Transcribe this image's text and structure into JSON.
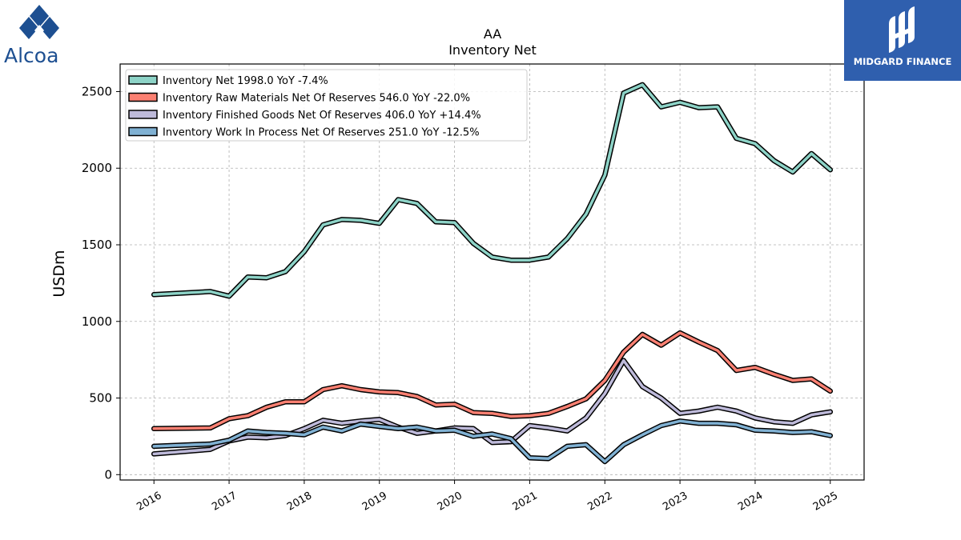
{
  "logos": {
    "left": {
      "text": "Alcoa",
      "color": "#1d4f91"
    },
    "right": {
      "text": "MIDGARD FINANCE",
      "bg": "#2f5fae"
    }
  },
  "chart_data": {
    "type": "line",
    "title": "AA",
    "subtitle": "Inventory Net",
    "xlabel": "",
    "ylabel": "USDm",
    "xlim": [
      2015.55,
      2025.45
    ],
    "ylim": [
      -35,
      2680
    ],
    "x_ticks": [
      "2016",
      "2017",
      "2018",
      "2019",
      "2020",
      "2021",
      "2022",
      "2023",
      "2024",
      "2025"
    ],
    "y_ticks": [
      0,
      500,
      1000,
      1500,
      2000,
      2500
    ],
    "grid": true,
    "legend_position": "top-left",
    "series": [
      {
        "name": "Inventory Net  1998.0 YoY -7.4%",
        "color": "#8dd3c7",
        "x": [
          2016.0,
          2016.75,
          2017.0,
          2017.25,
          2017.5,
          2017.75,
          2018.0,
          2018.25,
          2018.5,
          2018.75,
          2019.0,
          2019.25,
          2019.5,
          2019.75,
          2020.0,
          2020.25,
          2020.5,
          2020.75,
          2021.0,
          2021.25,
          2021.5,
          2021.75,
          2022.0,
          2022.25,
          2022.5,
          2022.75,
          2023.0,
          2023.25,
          2023.5,
          2023.75,
          2024.0,
          2024.25,
          2024.5,
          2024.75,
          2025.0
        ],
        "values": [
          1175,
          1195,
          1165,
          1290,
          1285,
          1325,
          1455,
          1630,
          1665,
          1660,
          1640,
          1795,
          1770,
          1650,
          1645,
          1510,
          1420,
          1400,
          1400,
          1420,
          1540,
          1700,
          1955,
          2490,
          2545,
          2400,
          2430,
          2395,
          2400,
          2195,
          2160,
          2050,
          1975,
          2095,
          1990
        ]
      },
      {
        "name": "Inventory Raw Materials Net Of Reserves  546.0 YoY -22.0%",
        "color": "#fb8072",
        "x": [
          2016.0,
          2016.75,
          2017.0,
          2017.25,
          2017.5,
          2017.75,
          2018.0,
          2018.25,
          2018.5,
          2018.75,
          2019.0,
          2019.25,
          2019.5,
          2019.75,
          2020.0,
          2020.25,
          2020.5,
          2020.75,
          2021.0,
          2021.25,
          2021.5,
          2021.75,
          2022.0,
          2022.25,
          2022.5,
          2022.75,
          2023.0,
          2023.25,
          2023.5,
          2023.75,
          2024.0,
          2024.25,
          2024.5,
          2024.75,
          2025.0
        ],
        "values": [
          300,
          305,
          365,
          385,
          440,
          475,
          475,
          555,
          580,
          555,
          540,
          535,
          510,
          455,
          460,
          405,
          400,
          380,
          385,
          400,
          445,
          495,
          615,
          800,
          915,
          845,
          925,
          865,
          810,
          680,
          700,
          655,
          615,
          625,
          545
        ]
      },
      {
        "name": "Inventory Finished Goods Net Of Reserves  406.0 YoY +14.4%",
        "color": "#bebada",
        "x": [
          2016.0,
          2016.75,
          2017.0,
          2017.25,
          2017.5,
          2017.75,
          2018.0,
          2018.25,
          2018.5,
          2018.75,
          2019.0,
          2019.25,
          2019.5,
          2019.75,
          2020.0,
          2020.25,
          2020.5,
          2020.75,
          2021.0,
          2021.25,
          2021.5,
          2021.75,
          2022.0,
          2022.25,
          2022.5,
          2022.75,
          2023.0,
          2023.25,
          2023.5,
          2023.75,
          2024.0,
          2024.25,
          2024.5,
          2024.75,
          2025.0
        ],
        "values": [
          135,
          165,
          220,
          245,
          240,
          255,
          300,
          355,
          335,
          350,
          360,
          310,
          270,
          285,
          305,
          300,
          210,
          215,
          320,
          305,
          285,
          370,
          530,
          745,
          575,
          500,
          400,
          415,
          440,
          415,
          370,
          345,
          335,
          390,
          410
        ]
      },
      {
        "name": "Inventory Work In Process Net Of Reserves  251.0 YoY -12.5%",
        "color": "#80b1d3",
        "x": [
          2016.0,
          2016.75,
          2017.0,
          2017.25,
          2017.5,
          2017.75,
          2018.0,
          2018.25,
          2018.5,
          2018.75,
          2019.0,
          2019.25,
          2019.5,
          2019.75,
          2020.0,
          2020.25,
          2020.5,
          2020.75,
          2021.0,
          2021.25,
          2021.5,
          2021.75,
          2022.0,
          2022.25,
          2022.5,
          2022.75,
          2023.0,
          2023.25,
          2023.5,
          2023.75,
          2024.0,
          2024.25,
          2024.5,
          2024.75,
          2025.0
        ],
        "values": [
          185,
          200,
          225,
          285,
          275,
          270,
          260,
          310,
          285,
          330,
          315,
          300,
          310,
          285,
          290,
          250,
          265,
          235,
          110,
          105,
          185,
          195,
          85,
          195,
          260,
          320,
          350,
          335,
          335,
          325,
          290,
          285,
          275,
          280,
          255
        ]
      }
    ]
  }
}
